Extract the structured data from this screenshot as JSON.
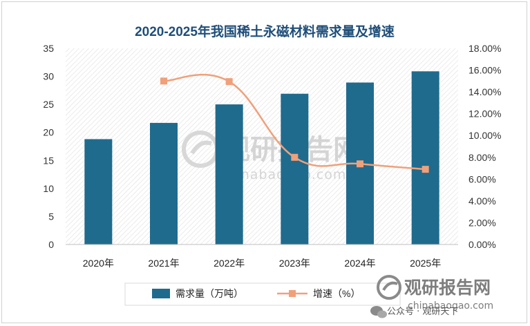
{
  "chart_data": {
    "type": "bar",
    "title": "2020-2025年我国稀土永磁材料需求量及增速",
    "categories": [
      "2020年",
      "2021年",
      "2022年",
      "2023年",
      "2024年",
      "2025年"
    ],
    "series": [
      {
        "name": "需求量（万吨）",
        "type": "bar",
        "axis": "left",
        "color": "#1f6b8e",
        "values": [
          18.8,
          21.7,
          25.0,
          26.9,
          28.9,
          30.9
        ]
      },
      {
        "name": "增速（%）",
        "type": "line",
        "axis": "right",
        "color": "#f0a07a",
        "values": [
          null,
          15.0,
          14.95,
          8.0,
          7.4,
          6.9
        ]
      }
    ],
    "y_left": {
      "min": 0,
      "max": 35,
      "ticks": [
        "0",
        "5",
        "10",
        "15",
        "20",
        "25",
        "30",
        "35"
      ]
    },
    "y_right": {
      "min": 0,
      "max": 18,
      "ticks": [
        "0.00%",
        "2.00%",
        "4.00%",
        "6.00%",
        "8.00%",
        "10.00%",
        "12.00%",
        "14.00%",
        "16.00%",
        "18.00%"
      ]
    },
    "grid": false,
    "legend_position": "bottom"
  },
  "watermark": {
    "cn": "观研报告网",
    "en": "chinabaogao.com"
  },
  "brand": {
    "cn": "观研报告网",
    "en": "chinabaogao.com",
    "wechat": "公众号 · 观研天下"
  }
}
